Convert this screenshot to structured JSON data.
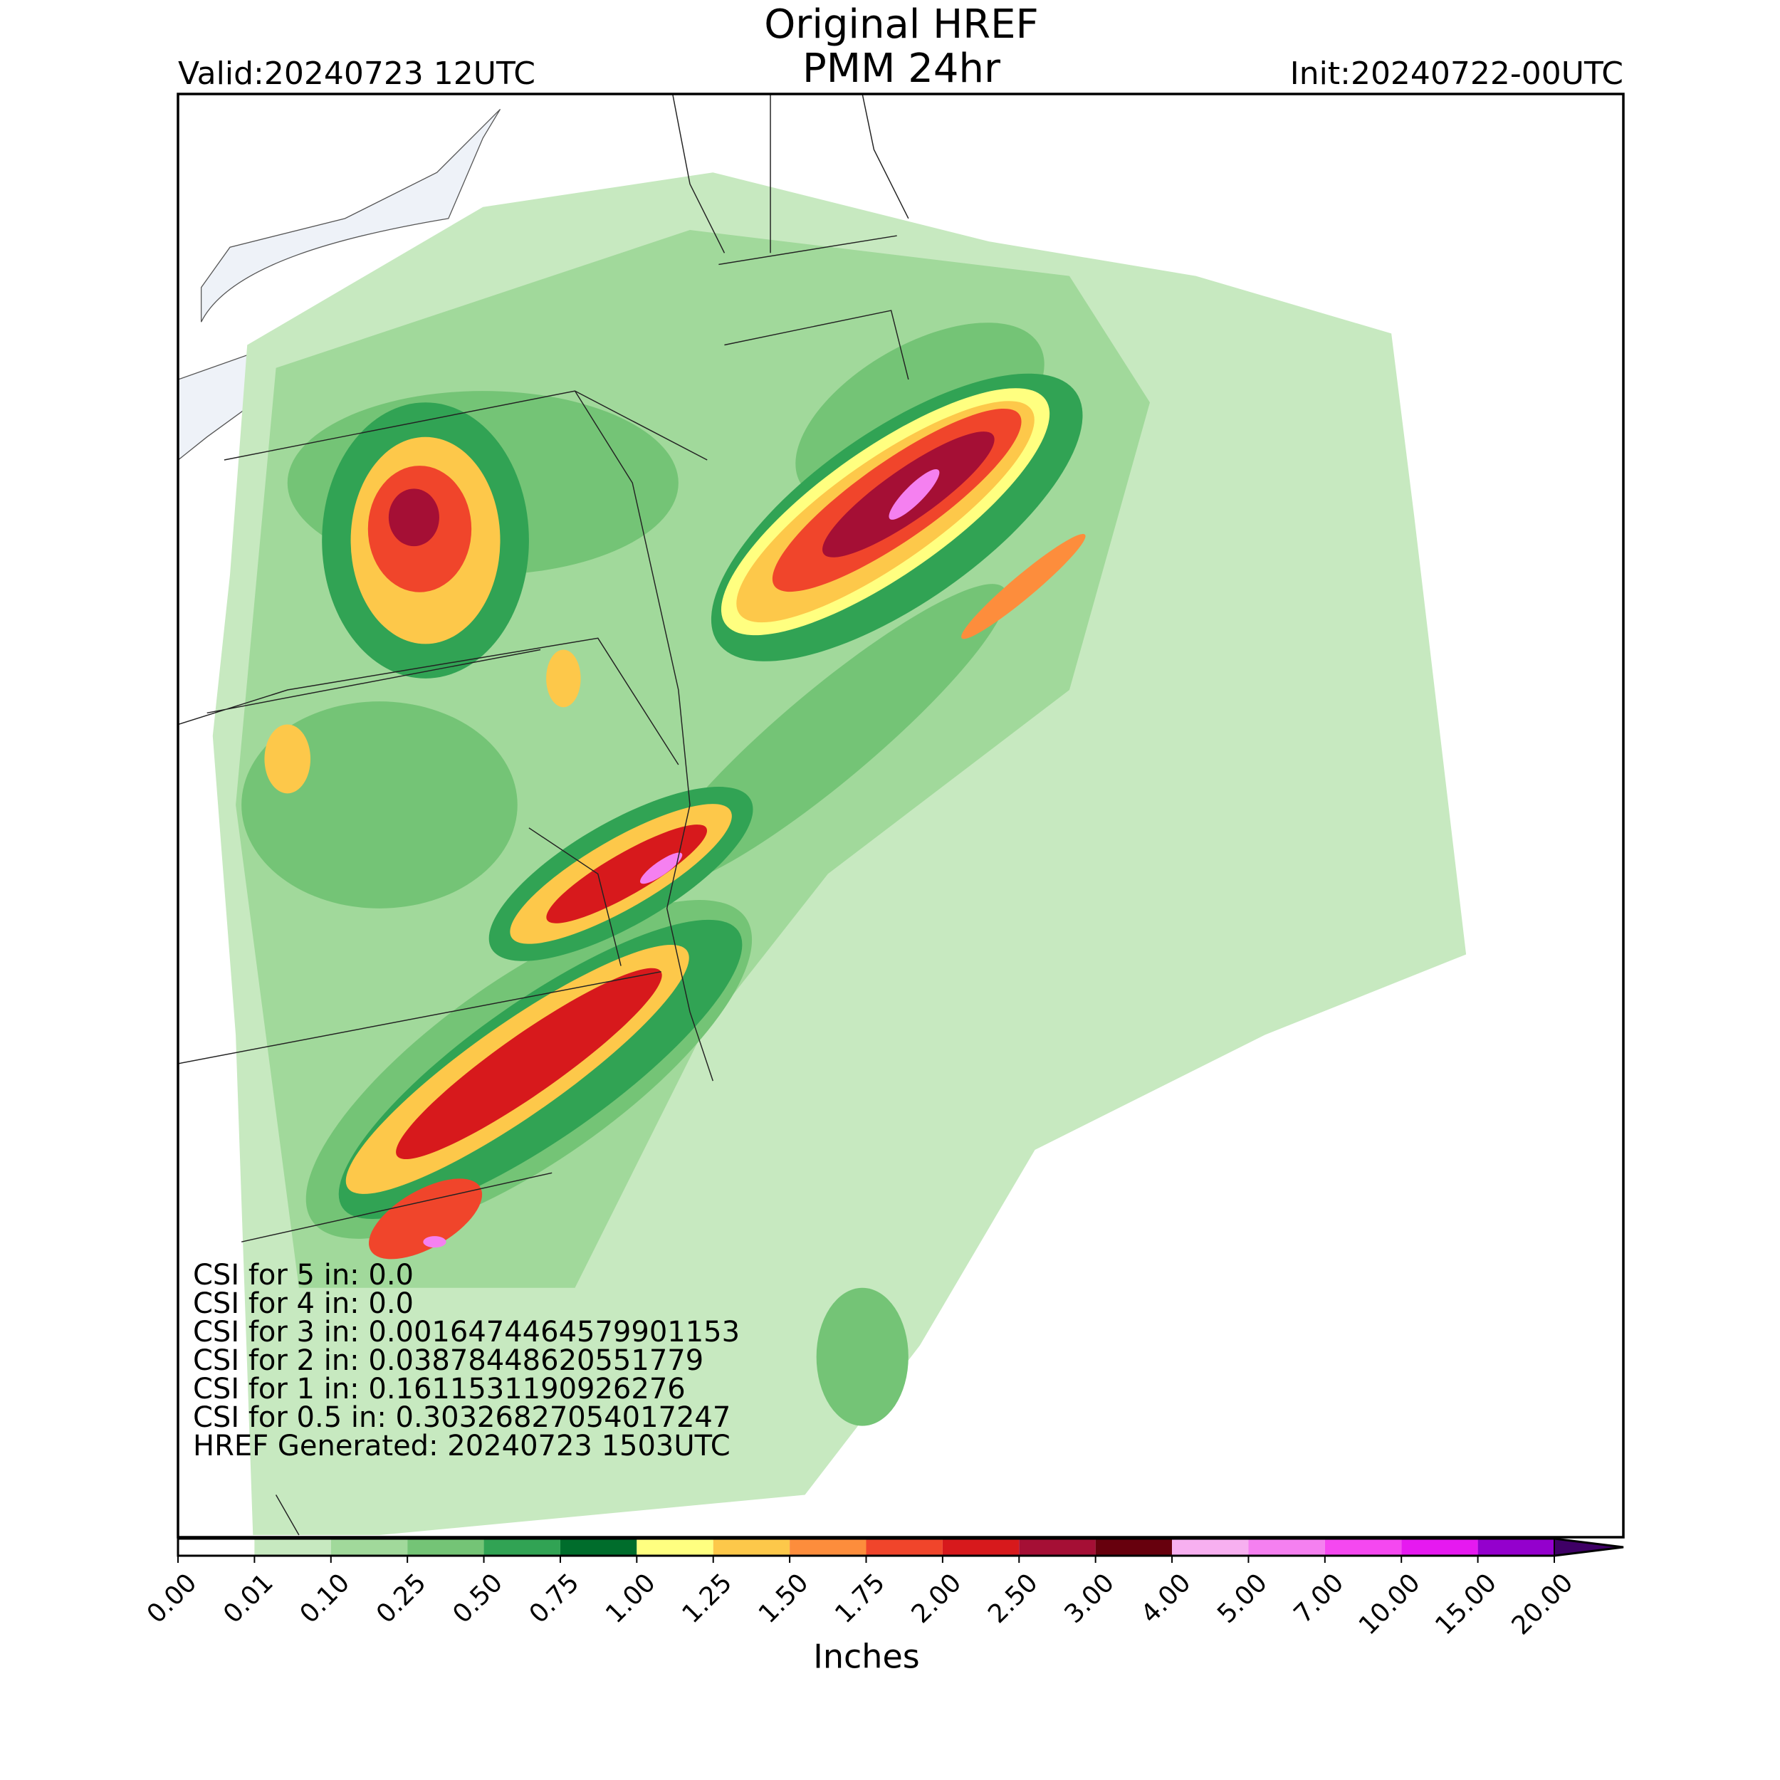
{
  "header": {
    "title": "Original HREF",
    "subtitle": "PMM 24hr",
    "valid": "Valid:20240723 12UTC",
    "init": "Init:20240722-00UTC"
  },
  "annotations": [
    "CSI for 5 in: 0.0",
    "CSI for 4 in: 0.0",
    "CSI for 3 in: 0.0016474464579901153",
    "CSI for 2 in: 0.03878448620551779",
    "CSI for 1 in: 0.1611531190926276",
    "CSI for 0.5 in: 0.30326827054017247",
    "HREF Generated: 20240723 1503UTC"
  ],
  "colorbar": {
    "label": "Inches",
    "ticks": [
      {
        "value": 0,
        "label": "0.00"
      },
      {
        "value": 0.01,
        "label": "0.01"
      },
      {
        "value": 0.1,
        "label": "0.10"
      },
      {
        "value": 0.25,
        "label": "0.25"
      },
      {
        "value": 0.5,
        "label": "0.50"
      },
      {
        "value": 0.75,
        "label": "0.75"
      },
      {
        "value": 1,
        "label": "1.00"
      },
      {
        "value": 1.25,
        "label": "1.25"
      },
      {
        "value": 1.5,
        "label": "1.50"
      },
      {
        "value": 1.75,
        "label": "1.75"
      },
      {
        "value": 2,
        "label": "2.00"
      },
      {
        "value": 2.5,
        "label": "2.50"
      },
      {
        "value": 3,
        "label": "3.00"
      },
      {
        "value": 4,
        "label": "4.00"
      },
      {
        "value": 5,
        "label": "5.00"
      },
      {
        "value": 7,
        "label": "7.00"
      },
      {
        "value": 10,
        "label": "10.00"
      },
      {
        "value": 15,
        "label": "15.00"
      },
      {
        "value": 20,
        "label": "20.00"
      }
    ],
    "colors": [
      "#ffffff",
      "#c7e9c0",
      "#a1d99b",
      "#74c476",
      "#31a354",
      "#006d2c",
      "#ffff80",
      "#fdc84a",
      "#fd8d3c",
      "#f0452b",
      "#d7191c",
      "#a50f35",
      "#67000d",
      "#f7b0f0",
      "#f580f0",
      "#f548f0",
      "#e619f0",
      "#9400cd"
    ],
    "extend_color": "#3f0066"
  }
}
